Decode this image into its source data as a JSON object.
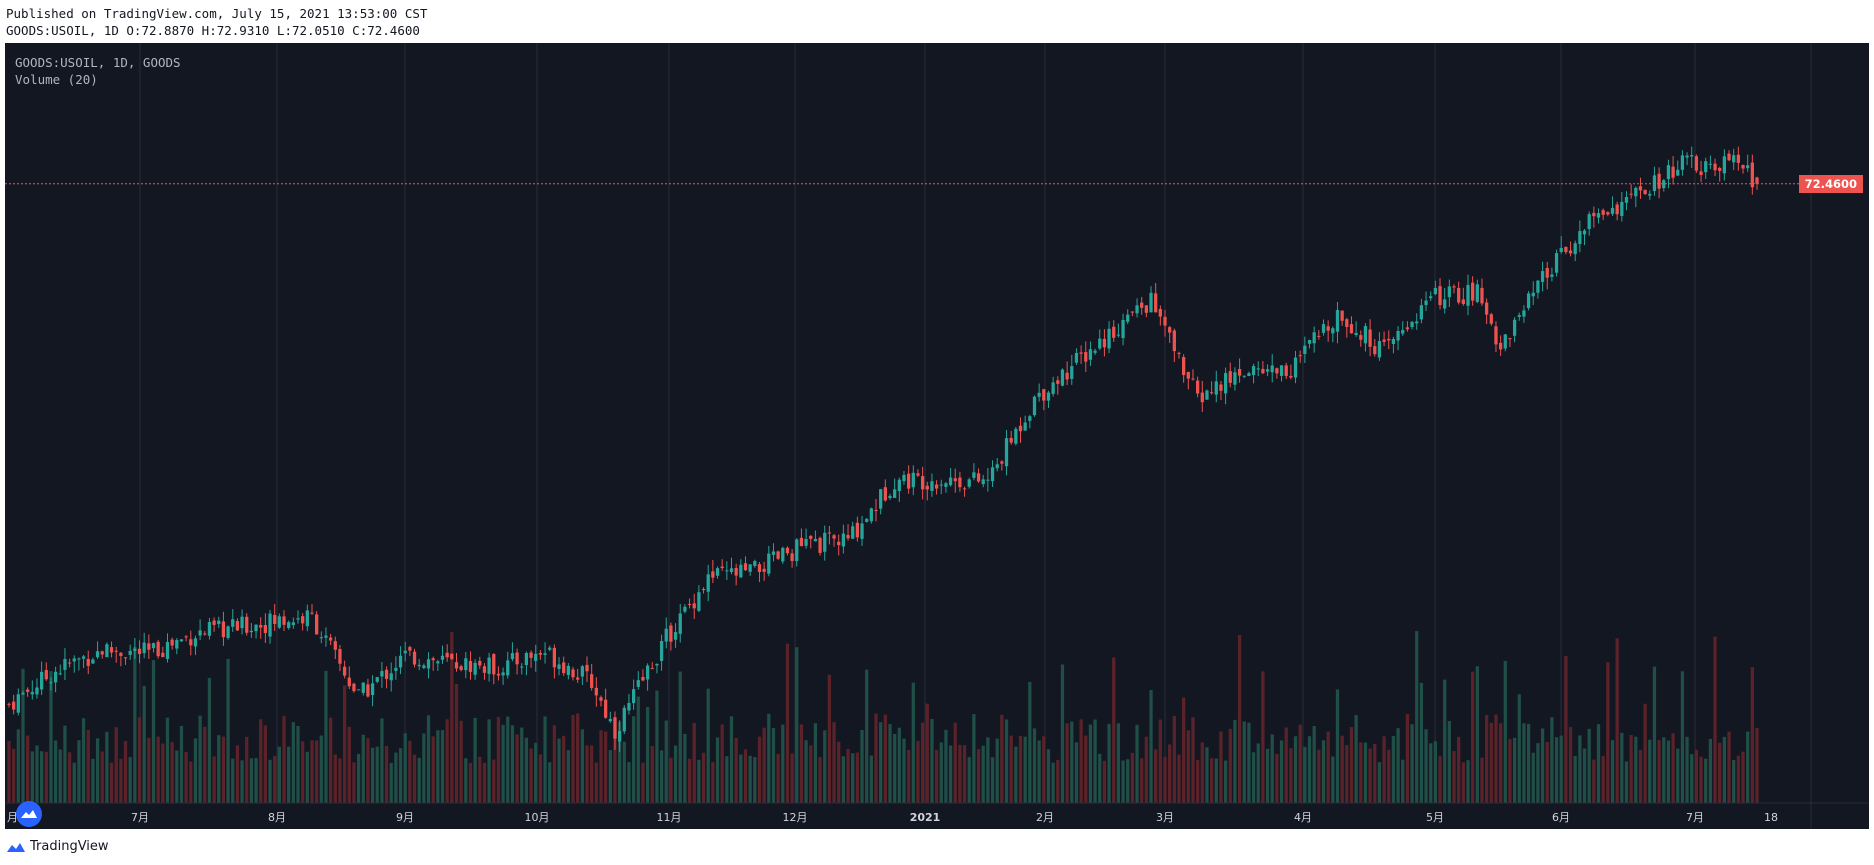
{
  "header": {
    "published": "Published on TradingView.com, July 15, 2021 13:53:00 CST",
    "ohlc": "GOODS:USOIL, 1D O:72.8870 H:72.9310 L:72.0510 C:72.4600"
  },
  "legend": {
    "symbol": "GOODS:USOIL, 1D, GOODS",
    "volume": "Volume (20)"
  },
  "price_tag": "72.4600",
  "footer": {
    "brand": "TradingView"
  },
  "colors": {
    "background": "#131722",
    "up": "#26a69a",
    "down": "#ef5350",
    "volume_up": "#1f4f47",
    "volume_down": "#5b2329",
    "grid": "#2a2e39",
    "brand": "#2962ff"
  },
  "icons": [
    "tradingview-cloud-icon"
  ],
  "chart_data": {
    "type": "candlestick",
    "symbol": "GOODS:USOIL",
    "interval": "1D",
    "title": "GOODS:USOIL, 1D, GOODS",
    "last_price": 72.46,
    "last": {
      "open": 72.887,
      "high": 72.931,
      "low": 72.051,
      "close": 72.46
    },
    "ylim": [
      33,
      80
    ],
    "x_ticks": [
      "月",
      "7月",
      "8月",
      "9月",
      "10月",
      "11月",
      "12月",
      "2021",
      "2月",
      "3月",
      "4月",
      "5月",
      "6月",
      "7月",
      "18"
    ],
    "trend": [
      {
        "week": 0,
        "price": 37.0
      },
      {
        "week": 2,
        "price": 39.3
      },
      {
        "week": 4,
        "price": 40.7
      },
      {
        "week": 6,
        "price": 40.5
      },
      {
        "week": 8,
        "price": 41.8
      },
      {
        "week": 10,
        "price": 42.3
      },
      {
        "week": 12,
        "price": 42.8
      },
      {
        "week": 13,
        "price": 42.9
      },
      {
        "week": 15,
        "price": 37.5
      },
      {
        "week": 17,
        "price": 40.3
      },
      {
        "week": 19,
        "price": 39.8
      },
      {
        "week": 21,
        "price": 39.5
      },
      {
        "week": 23,
        "price": 40.6
      },
      {
        "week": 25,
        "price": 38.5
      },
      {
        "week": 26,
        "price": 35.2
      },
      {
        "week": 28,
        "price": 41.0
      },
      {
        "week": 30,
        "price": 45.6
      },
      {
        "week": 32,
        "price": 46.1
      },
      {
        "week": 34,
        "price": 47.8
      },
      {
        "week": 36,
        "price": 48.2
      },
      {
        "week": 38,
        "price": 52.3
      },
      {
        "week": 40,
        "price": 52.3
      },
      {
        "week": 42,
        "price": 52.2
      },
      {
        "week": 44,
        "price": 57.8
      },
      {
        "week": 46,
        "price": 60.6
      },
      {
        "week": 48,
        "price": 63.3
      },
      {
        "week": 49,
        "price": 64.5
      },
      {
        "week": 51,
        "price": 57.8
      },
      {
        "week": 53,
        "price": 59.8
      },
      {
        "week": 55,
        "price": 59.8
      },
      {
        "week": 57,
        "price": 63.7
      },
      {
        "week": 59,
        "price": 61.0
      },
      {
        "week": 61,
        "price": 64.7
      },
      {
        "week": 63,
        "price": 65.0
      },
      {
        "week": 64,
        "price": 61.4
      },
      {
        "week": 66,
        "price": 66.3
      },
      {
        "week": 68,
        "price": 70.3
      },
      {
        "week": 70,
        "price": 71.7
      },
      {
        "week": 72,
        "price": 74.0
      },
      {
        "week": 73,
        "price": 73.2
      },
      {
        "week": 74,
        "price": 74.2
      },
      {
        "week": 75,
        "price": 72.46
      }
    ]
  }
}
